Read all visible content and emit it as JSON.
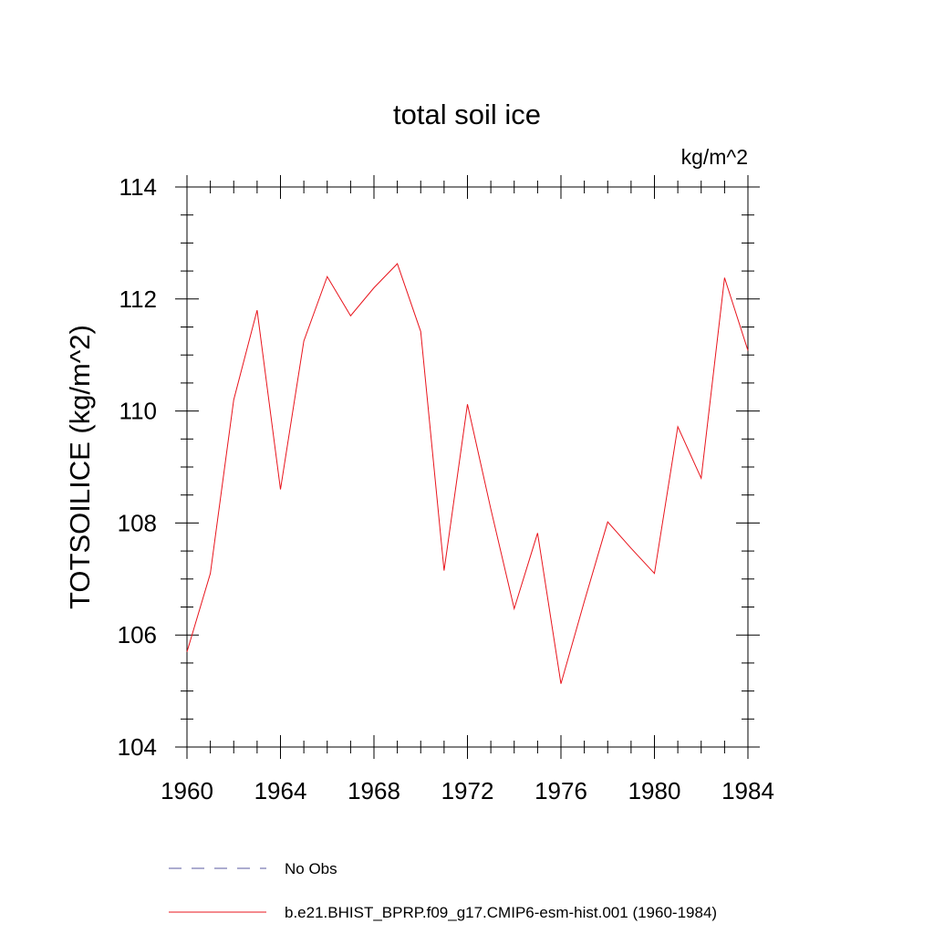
{
  "chart_data": {
    "type": "line",
    "title": "total soil ice",
    "units_label": "kg/m^2",
    "ylabel": "TOTSOILICE  (kg/m^2)",
    "xlabel": "",
    "xlim": [
      1960,
      1984
    ],
    "ylim": [
      104,
      114
    ],
    "x_ticks": [
      1960,
      1964,
      1968,
      1972,
      1976,
      1980,
      1984
    ],
    "y_ticks": [
      104,
      106,
      108,
      110,
      112,
      114
    ],
    "grid": false,
    "legend_position": "bottom",
    "series": [
      {
        "name": "No Obs",
        "color": "#5a5aa0",
        "style": "dashed",
        "x": [],
        "values": []
      },
      {
        "name": "b.e21.BHIST_BPRP.f09_g17.CMIP6-esm-hist.001 (1960-1984)",
        "color": "#e8141c",
        "style": "solid",
        "x": [
          1960,
          1961,
          1962,
          1963,
          1964,
          1965,
          1966,
          1967,
          1968,
          1969,
          1970,
          1971,
          1972,
          1973,
          1974,
          1975,
          1976,
          1977,
          1978,
          1979,
          1980,
          1981,
          1982,
          1983,
          1984
        ],
        "values": [
          105.7,
          107.1,
          110.2,
          111.8,
          108.6,
          111.25,
          112.4,
          111.7,
          112.2,
          112.63,
          111.42,
          107.15,
          110.12,
          108.25,
          106.47,
          107.82,
          105.13,
          106.6,
          108.02,
          107.55,
          107.1,
          109.72,
          108.8,
          112.38,
          111.08
        ]
      }
    ]
  }
}
